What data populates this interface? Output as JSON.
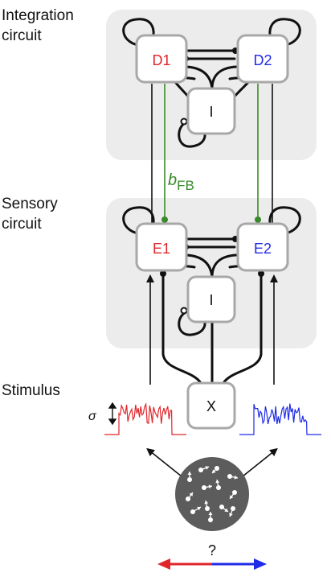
{
  "section_labels": {
    "integration_line1": "Integration",
    "integration_line2": "circuit",
    "sensory_line1": "Sensory",
    "sensory_line2": "circuit",
    "stimulus": "Stimulus"
  },
  "nodes": {
    "d1": "D1",
    "d2": "D2",
    "i_top": "I",
    "e1": "E1",
    "e2": "E2",
    "i_bottom": "I",
    "x": "X"
  },
  "feedback_label": {
    "base": "b",
    "subscript": "FB"
  },
  "sigma_label": "σ",
  "question_label": "?",
  "colors": {
    "panel": "#ececec",
    "node_border": "#a8a8a8",
    "left": "#e0262b",
    "right": "#1f2be6",
    "feedback": "#3a8a2a",
    "dots_disc": "#5c5c5c",
    "black": "#111111"
  },
  "icons": {
    "excitatory": "filled-circle-terminal",
    "inhibitory": "open-circle-terminal",
    "direction_arrow": "double-headed-arrow"
  }
}
